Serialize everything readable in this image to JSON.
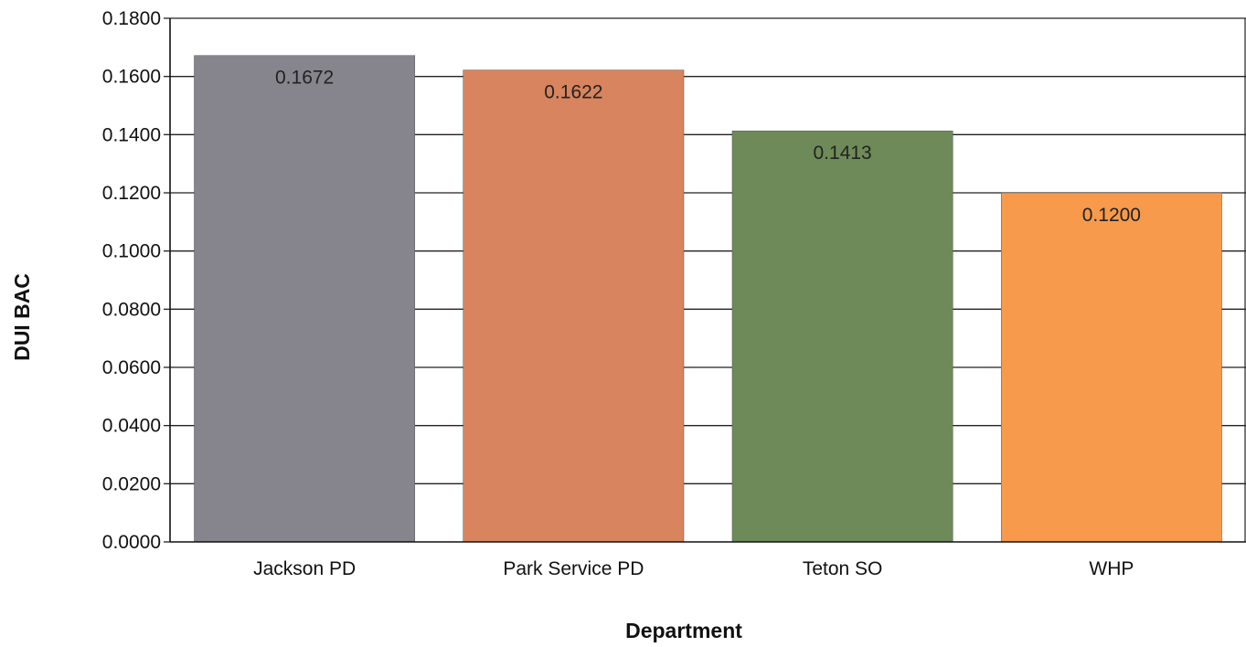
{
  "chart_data": {
    "type": "bar",
    "title": "",
    "xlabel": "Department",
    "ylabel": "DUI BAC",
    "categories": [
      "Jackson PD",
      "Park Service PD",
      "Teton SO",
      "WHP"
    ],
    "values": [
      0.1672,
      0.1622,
      0.1413,
      0.12
    ],
    "value_labels": [
      "0.1672",
      "0.1622",
      "0.1413",
      "0.1200"
    ],
    "bar_colors": [
      "#86848c",
      "#d8845e",
      "#6e8a58",
      "#f79a4c"
    ],
    "ylim": [
      0,
      0.18
    ],
    "yticks": [
      {
        "value": 0.0,
        "label": "0.0000"
      },
      {
        "value": 0.02,
        "label": "0.0200"
      },
      {
        "value": 0.04,
        "label": "0.0400"
      },
      {
        "value": 0.06,
        "label": "0.0600"
      },
      {
        "value": 0.08,
        "label": "0.0800"
      },
      {
        "value": 0.1,
        "label": "0.1000"
      },
      {
        "value": 0.12,
        "label": "0.1200"
      },
      {
        "value": 0.14,
        "label": "0.1400"
      },
      {
        "value": 0.16,
        "label": "0.1600"
      },
      {
        "value": 0.18,
        "label": "0.1800"
      }
    ],
    "grid": true,
    "legend": "none"
  }
}
